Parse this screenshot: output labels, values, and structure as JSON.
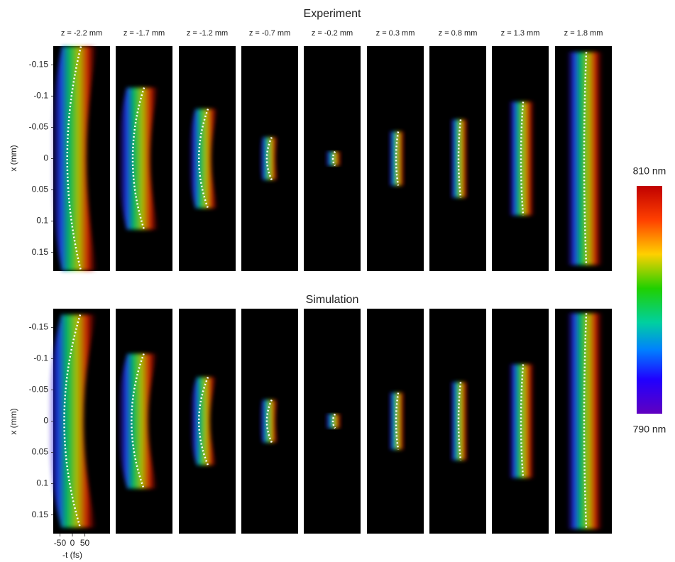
{
  "experiment_title": "Experiment",
  "simulation_title": "Simulation",
  "panel_labels": [
    "z = -2.2 mm",
    "z = -1.7 mm",
    "z = -1.2 mm",
    "z = -0.7 mm",
    "z = -0.2 mm",
    "z = 0.3 mm",
    "z = 0.8 mm",
    "z = 1.3 mm",
    "z = 1.8 mm"
  ],
  "y_axis": {
    "label": "x (mm)",
    "ylim": [
      -0.18,
      0.18
    ],
    "yticks": [
      -0.15,
      -0.1,
      -0.05,
      0,
      0.05,
      0.1,
      0.15
    ]
  },
  "x_axis": {
    "label": "-t (fs)",
    "xlim": [
      -77,
      151
    ],
    "xticks": [
      -50,
      0,
      50
    ]
  },
  "colorbar": {
    "top_label": "810 nm",
    "bottom_label": "790 nm"
  }
}
